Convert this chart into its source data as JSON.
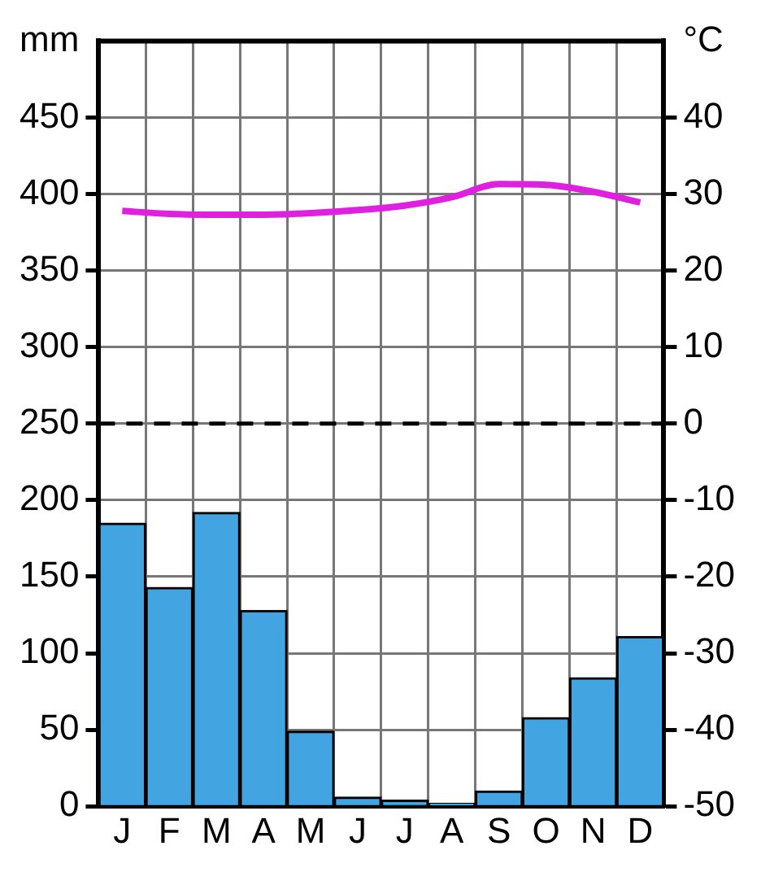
{
  "chart_data": {
    "type": "bar",
    "categories": [
      "J",
      "F",
      "M",
      "A",
      "M",
      "J",
      "J",
      "A",
      "S",
      "O",
      "N",
      "D"
    ],
    "series": [
      {
        "color": "#42a5e2",
        "values": [
          185,
          143,
          192,
          128,
          49,
          6,
          4,
          2,
          10,
          58,
          84,
          111
        ]
      },
      {
        "type": "line",
        "axis": "y2",
        "color": "#e020e0",
        "marker": "none",
        "values": [
          27.8,
          27.4,
          27.3,
          27.3,
          27.5,
          27.9,
          28.5,
          29.6,
          31.3,
          31.2,
          30.3,
          28.9
        ]
      }
    ],
    "ylabel": "mm",
    "y2label": "°C",
    "ylim": [
      0,
      500
    ],
    "yticks": [
      0,
      50,
      100,
      150,
      200,
      250,
      300,
      350,
      400,
      450
    ],
    "y2lim": [
      -50,
      50
    ],
    "y2ticks": [
      -50,
      -40,
      -30,
      -20,
      -10,
      0,
      10,
      20,
      30,
      40
    ],
    "ref_lines": [
      {
        "axis": "y2",
        "value": 0,
        "line_style": "dashed",
        "color": "#000000"
      }
    ],
    "grid": true,
    "legend": false
  }
}
